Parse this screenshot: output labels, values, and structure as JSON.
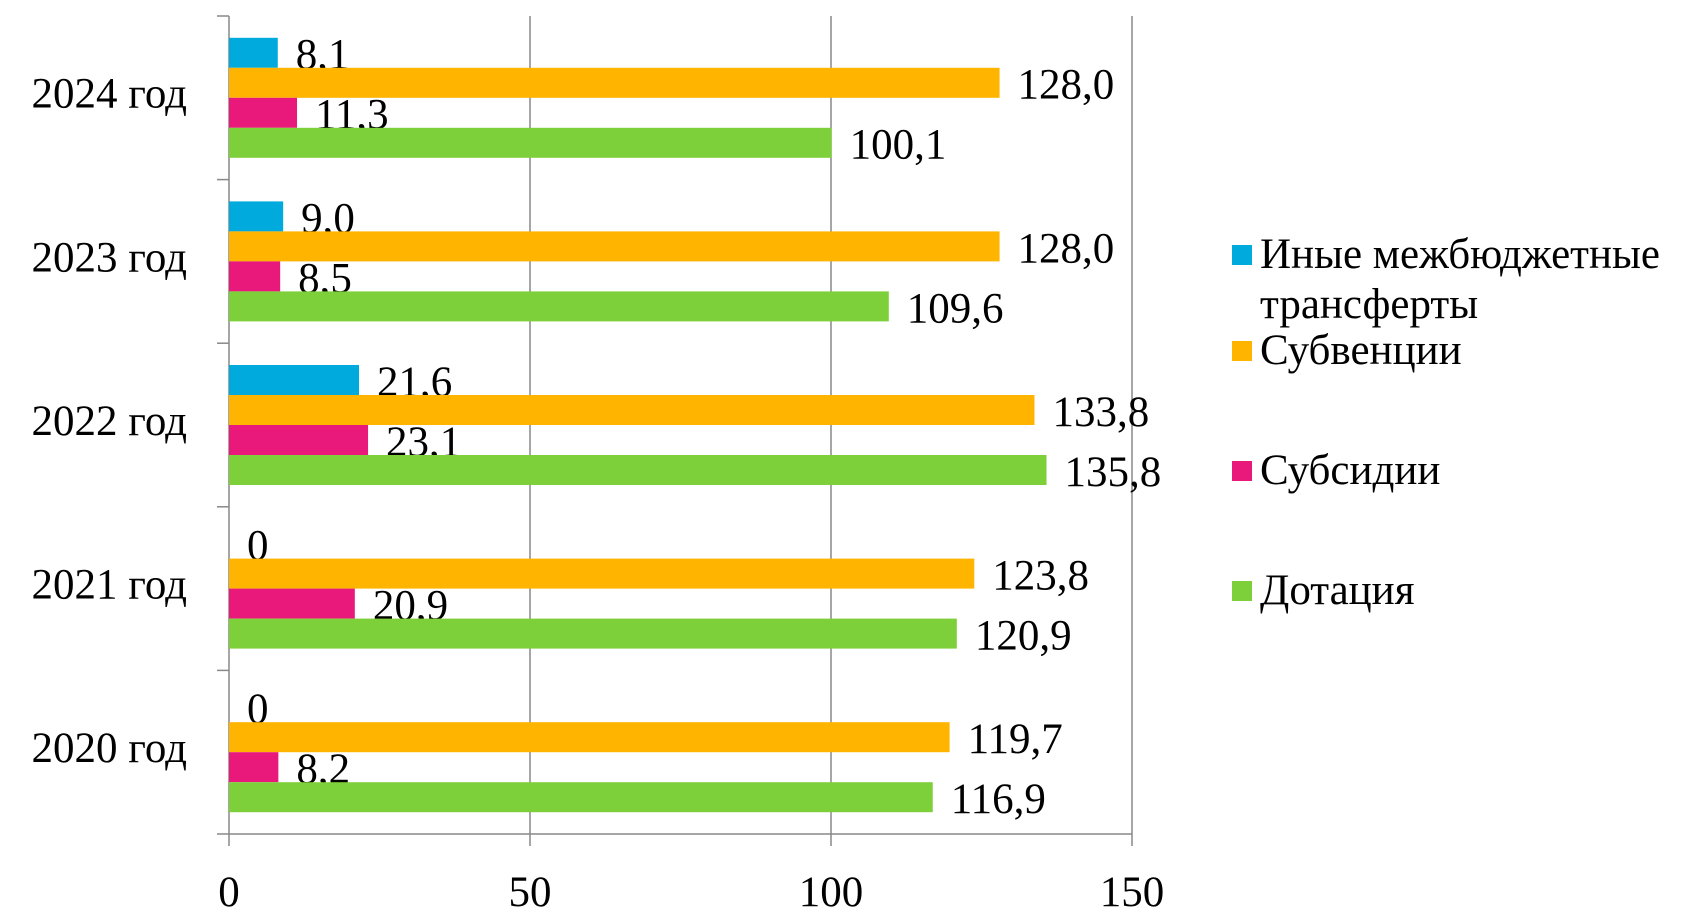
{
  "chart_data": {
    "type": "barh",
    "categories": [
      "2024 год",
      "2023 год",
      "2022 год",
      "2021 год",
      "2020 год"
    ],
    "series": [
      {
        "name": "Иные межбюджетные трансферты",
        "color": "#00aadd",
        "values": [
          8.1,
          9.0,
          21.6,
          0,
          0
        ],
        "value_labels": [
          "8,1",
          "9,0",
          "21,6",
          "0",
          "0"
        ]
      },
      {
        "name": "Субвенции",
        "color": "#ffb400",
        "values": [
          128.0,
          128.0,
          133.8,
          123.8,
          119.7
        ],
        "value_labels": [
          "128,0",
          "128,0",
          "133,8",
          "123,8",
          "119,7"
        ]
      },
      {
        "name": "Субсидии",
        "color": "#e8197a",
        "values": [
          11.3,
          8.5,
          23.1,
          20.9,
          8.2
        ],
        "value_labels": [
          "11,3",
          "8,5",
          "23,1",
          "20,9",
          "8,2"
        ]
      },
      {
        "name": "Дотация",
        "color": "#7ed03a",
        "values": [
          100.1,
          109.6,
          135.8,
          120.9,
          116.9
        ],
        "value_labels": [
          "100,1",
          "109,6",
          "135,8",
          "120,9",
          "116,9"
        ]
      }
    ],
    "xlim": [
      0,
      150
    ],
    "xticks": [
      0,
      50,
      100,
      150
    ],
    "grid": true,
    "legend": "right"
  }
}
